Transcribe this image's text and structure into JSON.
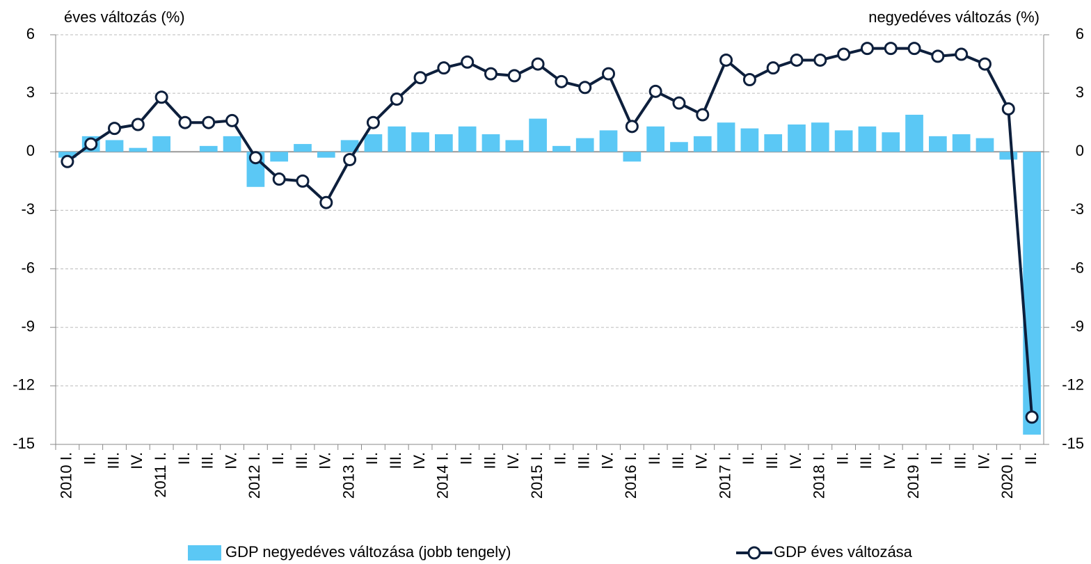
{
  "chart_data": {
    "type": "combo",
    "y_label": "éves változás (%)",
    "y2_label": "negyedéves változás (%)",
    "categories": [
      "2010 I.",
      "II.",
      "III.",
      "IV.",
      "2011 I.",
      "II.",
      "III.",
      "IV.",
      "2012 I.",
      "II.",
      "III.",
      "IV.",
      "2013 I.",
      "II.",
      "III.",
      "IV.",
      "2014 I.",
      "II.",
      "III.",
      "IV.",
      "2015 I.",
      "II.",
      "III.",
      "IV.",
      "2016 I.",
      "II.",
      "III.",
      "IV.",
      "2017 I.",
      "II.",
      "III.",
      "IV.",
      "2018 I.",
      "II.",
      "III.",
      "IV.",
      "2019 I.",
      "II.",
      "III.",
      "IV.",
      "2020 I.",
      "II."
    ],
    "series": [
      {
        "name": "GDP negyedéves változása (jobb tengely)",
        "type": "bar",
        "axis": "y2",
        "color": "#5bc8f5",
        "values": [
          -0.3,
          0.8,
          0.6,
          0.2,
          0.8,
          0.0,
          0.3,
          0.8,
          -1.8,
          -0.5,
          0.4,
          -0.3,
          0.6,
          0.9,
          1.3,
          1.0,
          0.9,
          1.3,
          0.9,
          0.6,
          1.7,
          0.3,
          0.7,
          1.1,
          -0.5,
          1.3,
          0.5,
          0.8,
          1.5,
          1.2,
          0.9,
          1.4,
          1.5,
          1.1,
          1.3,
          1.0,
          1.9,
          0.8,
          0.9,
          0.7,
          -0.4,
          -14.5
        ]
      },
      {
        "name": "GDP éves változása",
        "type": "line",
        "axis": "y",
        "color": "#0d1f3c",
        "values": [
          -0.5,
          0.4,
          1.2,
          1.4,
          2.8,
          1.5,
          1.5,
          1.6,
          -0.3,
          -1.4,
          -1.5,
          -2.6,
          -0.4,
          1.5,
          2.7,
          3.8,
          4.3,
          4.6,
          4.0,
          3.9,
          4.5,
          3.6,
          3.3,
          4.0,
          1.3,
          3.1,
          2.5,
          1.9,
          4.7,
          3.7,
          4.3,
          4.7,
          4.7,
          5.0,
          5.3,
          5.3,
          5.3,
          4.9,
          5.0,
          4.5,
          2.2,
          -13.6
        ]
      }
    ],
    "ylim": [
      -15,
      6
    ],
    "yticks": [
      6,
      3,
      0,
      -3,
      -6,
      -9,
      -12,
      -15
    ],
    "y2lim": [
      -15,
      6
    ],
    "y2ticks": [
      6,
      3,
      0,
      -3,
      -6,
      -9,
      -12,
      -15
    ],
    "grid": true,
    "legend": "bottom"
  }
}
